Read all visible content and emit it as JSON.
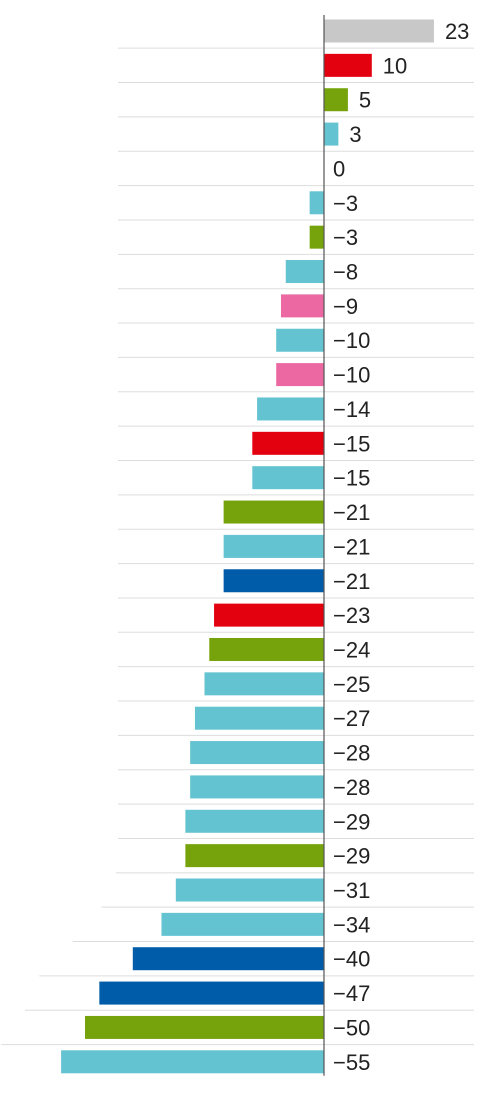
{
  "chart_data": {
    "type": "bar",
    "orientation": "horizontal",
    "title": "",
    "xlabel": "",
    "ylabel": "",
    "xlim": [
      -55,
      23
    ],
    "grid": true,
    "legend": "none",
    "values": [
      23,
      10,
      5,
      3,
      0,
      -3,
      -3,
      -8,
      -9,
      -10,
      -10,
      -14,
      -15,
      -15,
      -21,
      -21,
      -21,
      -23,
      -24,
      -25,
      -27,
      -28,
      -28,
      -29,
      -29,
      -31,
      -34,
      -40,
      -47,
      -50,
      -55
    ],
    "labels": [
      "23",
      "10",
      "5",
      "3",
      "0",
      "−3",
      "−3",
      "−8",
      "−9",
      "−10",
      "−10",
      "−14",
      "−15",
      "−15",
      "−21",
      "−21",
      "−21",
      "−23",
      "−24",
      "−25",
      "−27",
      "−28",
      "−28",
      "−29",
      "−29",
      "−31",
      "−34",
      "−40",
      "−47",
      "−50",
      "−55"
    ],
    "bar_colors": [
      "#c8c8c8",
      "#e3000f",
      "#76a30b",
      "#63c3d1",
      "#63c3d1",
      "#63c3d1",
      "#76a30b",
      "#63c3d1",
      "#eb68a2",
      "#63c3d1",
      "#eb68a2",
      "#63c3d1",
      "#e3000f",
      "#63c3d1",
      "#76a30b",
      "#63c3d1",
      "#005ca9",
      "#e3000f",
      "#76a30b",
      "#63c3d1",
      "#63c3d1",
      "#63c3d1",
      "#63c3d1",
      "#63c3d1",
      "#76a30b",
      "#63c3d1",
      "#63c3d1",
      "#005ca9",
      "#005ca9",
      "#76a30b",
      "#63c3d1"
    ]
  }
}
